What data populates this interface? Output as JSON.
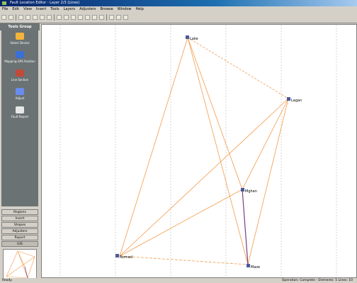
{
  "window": {
    "title": "Fault Location Editor - Layer 2/3 (Lines)"
  },
  "menu": [
    "File",
    "Edit",
    "View",
    "Insert",
    "Tools",
    "Layers",
    "Adjusters",
    "Browse",
    "Window",
    "Help"
  ],
  "sidebar": {
    "header": "Tools Group",
    "items": [
      {
        "label": "Select Device",
        "icon": "select-device-icon",
        "color": "#f2b43a"
      },
      {
        "label": "Mapping GPS Position",
        "icon": "gps-mapping-icon",
        "color": "#3a6fd8"
      },
      {
        "label": "Line Section",
        "icon": "line-section-icon",
        "color": "#c24a3a"
      },
      {
        "label": "Adjust",
        "icon": "adjust-icon",
        "color": "#6a8cf0"
      },
      {
        "label": "Fault Report",
        "icon": "fault-report-icon",
        "color": "#e8e8e8"
      }
    ],
    "tabs": [
      "Regions",
      "Insert",
      "Shapes",
      "Adjusters",
      "Report",
      "GIS"
    ],
    "active_tab": "GIS"
  },
  "diagram": {
    "nodes": [
      {
        "id": "lake",
        "label": "Lake"
      },
      {
        "id": "nomad",
        "label": "Nomad"
      },
      {
        "id": "lagan",
        "label": "Lagan"
      },
      {
        "id": "mghan",
        "label": "Mghan"
      },
      {
        "id": "maze",
        "label": "Maze"
      }
    ],
    "edge_color": "#f39a4a",
    "highlight_color": "#7a3a8a"
  },
  "status": {
    "left": "Ready",
    "right": "Operation: Complete - Elements: 5 Lines: 10"
  }
}
